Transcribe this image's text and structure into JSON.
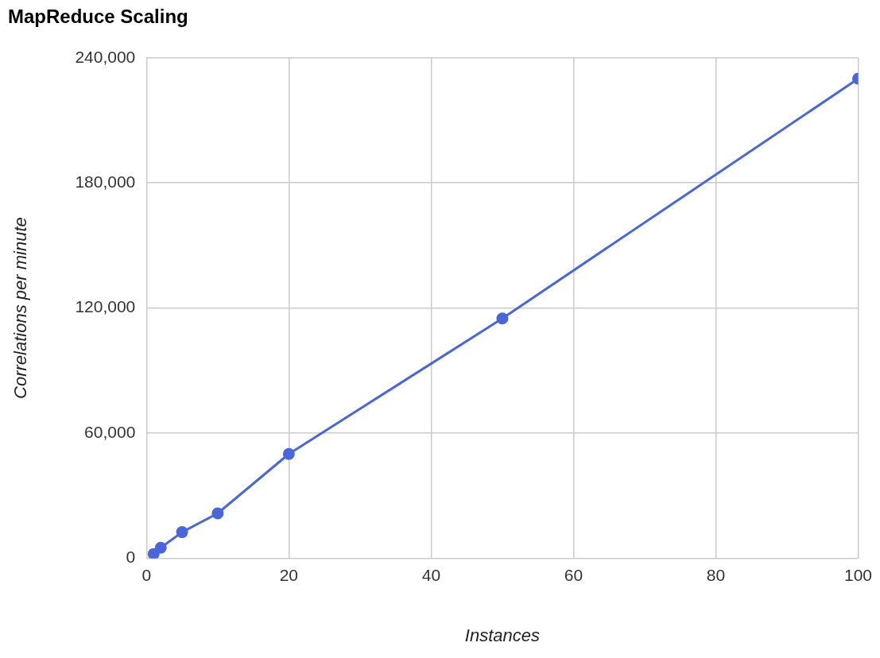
{
  "chart_data": {
    "type": "line",
    "title": "MapReduce Scaling",
    "xlabel": "Instances",
    "ylabel": "Correlations per minute",
    "x": [
      1,
      2,
      5,
      10,
      20,
      50,
      100
    ],
    "series": [
      {
        "color": "#4a66d9",
        "values": [
          2000,
          5000,
          12500,
          21500,
          50000,
          115000,
          230000
        ]
      }
    ],
    "xlim": [
      0,
      100
    ],
    "xticks": [
      0,
      20,
      40,
      60,
      80,
      100
    ],
    "ylim": [
      0,
      240000
    ],
    "yticks": [
      {
        "value": 0,
        "label": "0"
      },
      {
        "value": 60000,
        "label": "60,000"
      },
      {
        "value": 120000,
        "label": "120,000"
      },
      {
        "value": 180000,
        "label": "180,000"
      },
      {
        "value": 240000,
        "label": "240,000"
      }
    ],
    "grid": true,
    "legend": false,
    "marker": "circle",
    "line_style": "solid"
  }
}
